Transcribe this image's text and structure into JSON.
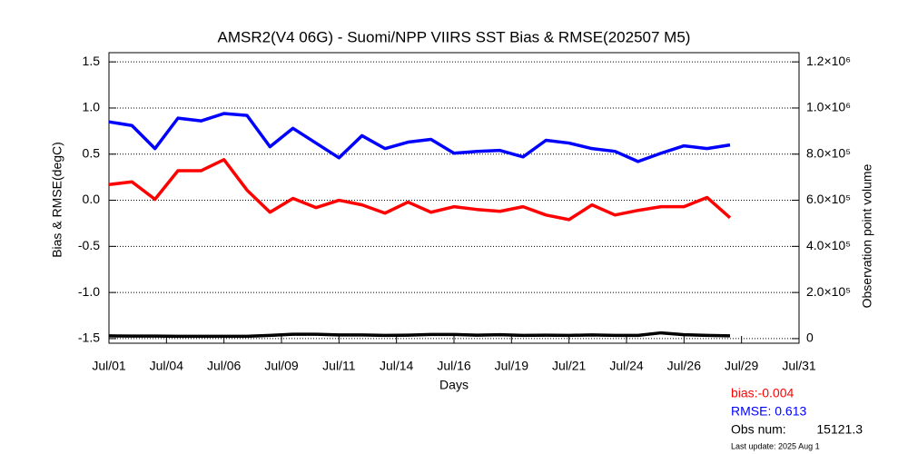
{
  "chart_data": {
    "type": "line",
    "title": "AMSR2(V4 06G) - Suomi/NPP VIIRS SST Bias & RMSE(202507 M5)",
    "xlabel": "Days",
    "ylabel": "Bias & RMSE(degC)",
    "y2label": "Observation point volume",
    "x": [
      1,
      2,
      3,
      4,
      5,
      6,
      7,
      8,
      9,
      10,
      11,
      12,
      13,
      14,
      15,
      16,
      17,
      18,
      19,
      20,
      21,
      22,
      23,
      24,
      25,
      26,
      27,
      28
    ],
    "xlim": [
      1,
      31
    ],
    "xticks": [
      {
        "value": 1,
        "label": "Jul/01"
      },
      {
        "value": 3.5,
        "label": "Jul/04"
      },
      {
        "value": 6,
        "label": "Jul/06"
      },
      {
        "value": 8.5,
        "label": "Jul/09"
      },
      {
        "value": 11,
        "label": "Jul/11"
      },
      {
        "value": 13.5,
        "label": "Jul/14"
      },
      {
        "value": 16,
        "label": "Jul/16"
      },
      {
        "value": 18.5,
        "label": "Jul/19"
      },
      {
        "value": 21,
        "label": "Jul/21"
      },
      {
        "value": 23.5,
        "label": "Jul/24"
      },
      {
        "value": 26,
        "label": "Jul/26"
      },
      {
        "value": 28.5,
        "label": "Jul/29"
      },
      {
        "value": 31,
        "label": "Jul/31"
      }
    ],
    "ylim": [
      -1.55,
      1.6
    ],
    "yticks": [
      1.5,
      {
        "value": 1.0,
        "label": "1.0"
      },
      0.5,
      {
        "value": 0.0,
        "label": "0.0"
      },
      -0.5,
      {
        "value": -1.0,
        "label": "-1.0"
      },
      -1.5
    ],
    "y2lim": [
      -20000,
      1240000
    ],
    "y2ticks": [
      0,
      {
        "value": 200000,
        "label": "2.0×10⁵"
      },
      {
        "value": 400000,
        "label": "4.0×10⁵"
      },
      {
        "value": 600000,
        "label": "6.0×10⁵"
      },
      {
        "value": 800000,
        "label": "8.0×10⁵"
      },
      {
        "value": 1000000,
        "label": "1.0×10⁶"
      },
      {
        "value": 1200000,
        "label": "1.2×10⁶"
      }
    ],
    "grid": true,
    "series": [
      {
        "color": "#ff0000",
        "values": [
          0.17,
          0.2,
          0.01,
          0.32,
          0.32,
          0.44,
          0.11,
          -0.13,
          0.02,
          -0.08,
          0.0,
          -0.05,
          -0.14,
          -0.02,
          -0.13,
          -0.07,
          -0.1,
          -0.12,
          -0.07,
          -0.16,
          -0.21,
          -0.05,
          -0.16,
          -0.11,
          -0.07,
          -0.07,
          0.03,
          -0.19
        ]
      },
      {
        "color": "#0000ff",
        "values": [
          0.85,
          0.81,
          0.56,
          0.89,
          0.86,
          0.94,
          0.92,
          0.58,
          0.78,
          0.62,
          0.46,
          0.7,
          0.56,
          0.63,
          0.66,
          0.51,
          0.53,
          0.54,
          0.47,
          0.65,
          0.62,
          0.56,
          0.53,
          0.42,
          0.51,
          0.59,
          0.56,
          0.6
        ]
      },
      {
        "color": "#000000",
        "axis": "y2",
        "values": [
          12000,
          11000,
          11000,
          10000,
          10000,
          10000,
          10000,
          14000,
          19000,
          19000,
          16000,
          16000,
          14000,
          15000,
          18000,
          18000,
          15000,
          17000,
          14000,
          15000,
          14000,
          16000,
          14000,
          14000,
          25000,
          17000,
          14000,
          12000
        ]
      }
    ],
    "stats": [
      {
        "text": "bias:-0.004",
        "color": "#ff0000"
      },
      {
        "text": "RMSE: 0.613",
        "color": "#0000ff"
      },
      {
        "text": "Obs num:",
        "value_text": "15121.3",
        "color": "#000000"
      }
    ],
    "update": "Last update: 2025 Aug  1"
  }
}
